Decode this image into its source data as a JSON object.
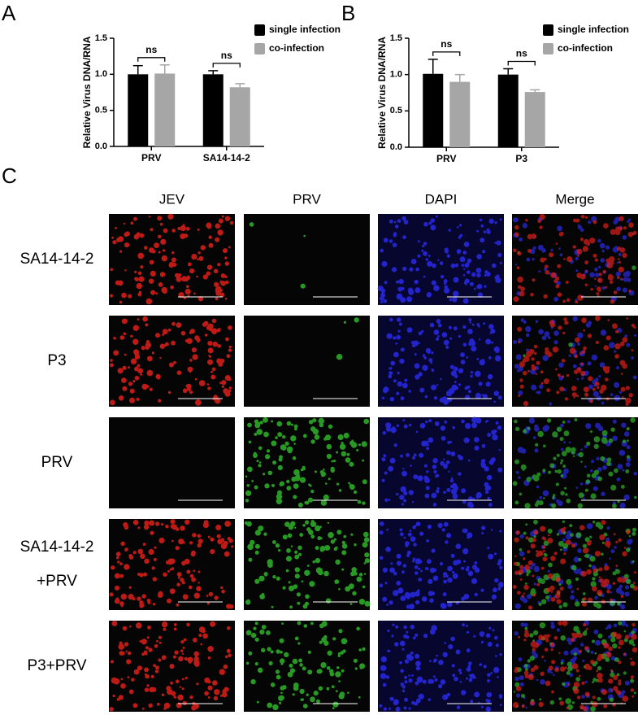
{
  "chart_data": [
    {
      "type": "bar",
      "panel": "A",
      "ylabel": "Relative Virus DNA/RNA",
      "categories": [
        "PRV",
        "SA14-14-2"
      ],
      "series": [
        {
          "name": "single infection",
          "color": "#000000",
          "values": [
            1.0,
            1.0
          ],
          "errors": [
            0.12,
            0.05
          ]
        },
        {
          "name": "co-infection",
          "color": "#a6a6a6",
          "values": [
            1.01,
            0.82
          ],
          "errors": [
            0.12,
            0.05
          ]
        }
      ],
      "annotations": [
        "ns",
        "ns"
      ],
      "ylim": [
        0,
        1.5
      ],
      "yticks": [
        {
          "value": 0,
          "label": "0.0"
        },
        0.5,
        {
          "value": 1,
          "label": "1.0"
        },
        1.5
      ],
      "legend": "upper right"
    },
    {
      "type": "bar",
      "panel": "B",
      "ylabel": "Relative Virus DNA/RNA",
      "categories": [
        "PRV",
        "P3"
      ],
      "series": [
        {
          "name": "single infection",
          "color": "#000000",
          "values": [
            1.01,
            1.0
          ],
          "errors": [
            0.2,
            0.08
          ]
        },
        {
          "name": "co-infection",
          "color": "#a6a6a6",
          "values": [
            0.9,
            0.76
          ],
          "errors": [
            0.1,
            0.03
          ]
        }
      ],
      "annotations": [
        "ns",
        "ns"
      ],
      "ylim": [
        0,
        1.5
      ],
      "yticks": [
        {
          "value": 0,
          "label": "0.0"
        },
        0.5,
        {
          "value": 1,
          "label": "1.0"
        },
        1.5
      ],
      "legend": "upper right"
    }
  ],
  "image_grid": {
    "panel": "C",
    "columns": [
      "JEV",
      "PRV",
      "DAPI",
      "Merge"
    ],
    "rows": [
      [
        "SA14-14-2"
      ],
      [
        "P3"
      ],
      [
        "PRV"
      ],
      [
        "SA14-14-2",
        "+PRV"
      ],
      [
        "P3+PRV"
      ]
    ]
  }
}
